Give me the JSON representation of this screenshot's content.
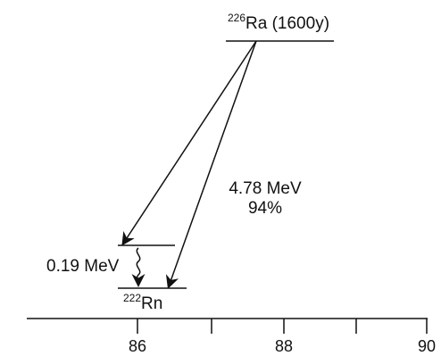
{
  "parent": {
    "mass_number": "226",
    "symbol_suffix": "Ra (1600y)"
  },
  "daughter": {
    "mass_number": "222",
    "symbol": "Rn"
  },
  "transition": {
    "energy": "4.78 MeV",
    "branching": "94%"
  },
  "gamma": {
    "energy": "0.19 MeV"
  },
  "axis": {
    "ticks": [
      "86",
      "88",
      "90"
    ]
  },
  "colors": {
    "line": "#111111",
    "background": "#ffffff"
  }
}
